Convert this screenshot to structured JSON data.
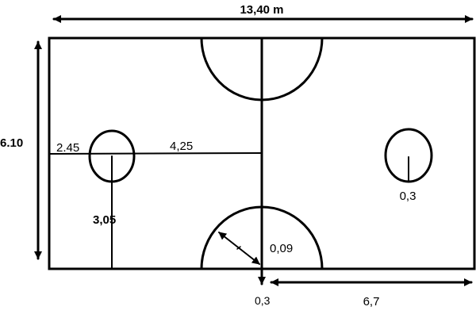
{
  "labels": {
    "total_length": "13,40 m",
    "total_width": "6.10",
    "left_segment": "2.45",
    "middle_segment": "4,25",
    "half_width": "3,05",
    "circle_radius": "0,3",
    "arc_radius": "0,09",
    "bottom_offset": "0,3",
    "half_length": "6,7"
  }
}
